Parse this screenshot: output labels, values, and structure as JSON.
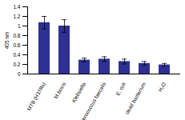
{
  "chart_data": {
    "type": "bar",
    "y_label": "405 nm",
    "categories": [
      "MTB (H37Rv)",
      "M.bovis",
      "Klebsiella",
      "Enterococcus faecalis",
      "E. coli",
      "dead bacterium",
      "H₂O"
    ],
    "values": [
      1.07,
      1.0,
      0.29,
      0.31,
      0.26,
      0.22,
      0.19
    ],
    "errors": [
      0.13,
      0.13,
      0.04,
      0.05,
      0.05,
      0.04,
      0.03
    ],
    "color": "#2e3192",
    "ylim": [
      0,
      1.4
    ],
    "yticks": [
      0,
      0.2,
      0.4,
      0.6,
      0.8,
      1,
      1.2,
      1.4
    ],
    "grid": false
  }
}
